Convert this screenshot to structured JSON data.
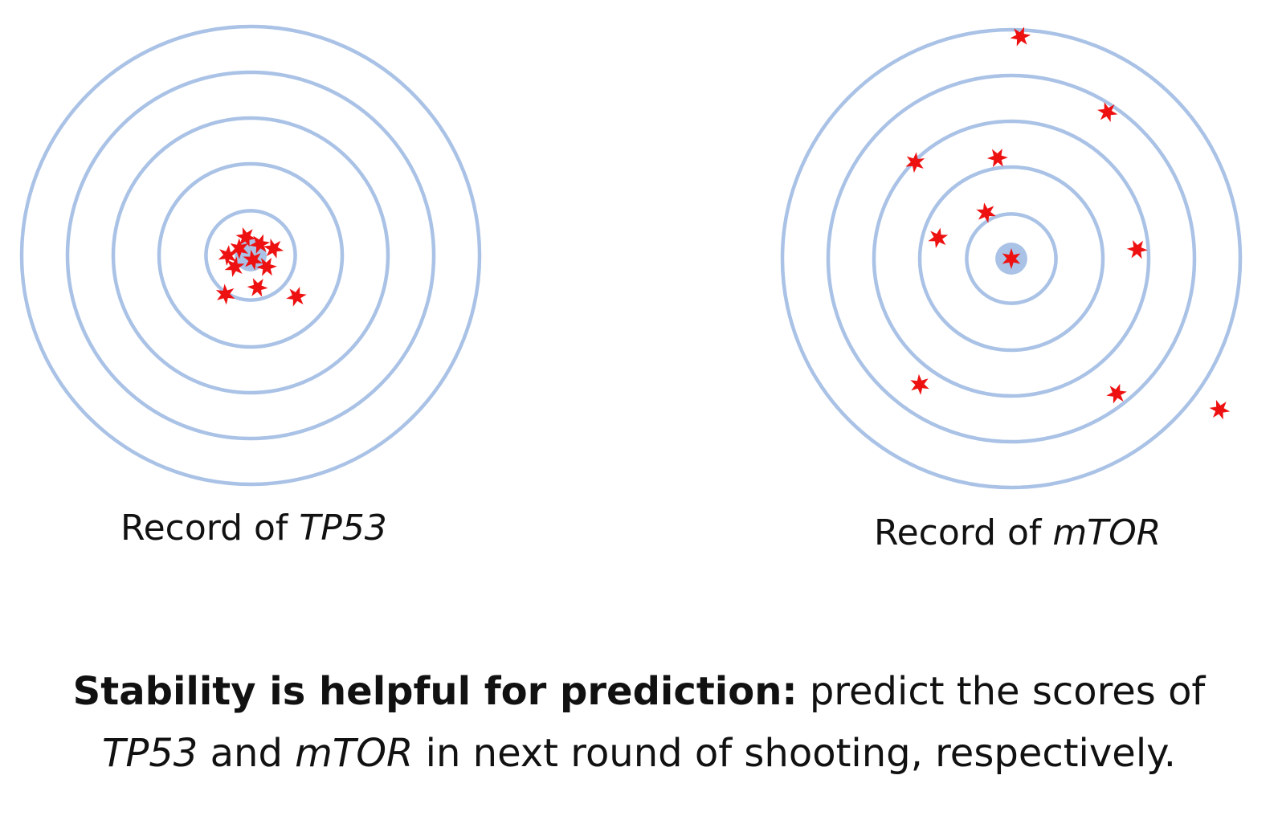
{
  "colors": {
    "ring": "#a9c2e6",
    "bullseye": "#a9c2e6",
    "shot": "#ee1111",
    "text": "#111111"
  },
  "targets": [
    {
      "id": "tp53",
      "label_prefix": "Record of ",
      "label_gene": "TP53",
      "ring_count": 5,
      "shots": [
        [
          -0.05,
          0.03
        ],
        [
          0.04,
          0.05
        ],
        [
          0.1,
          0.03
        ],
        [
          -0.1,
          0.0
        ],
        [
          0.07,
          -0.05
        ],
        [
          0.01,
          -0.02
        ],
        [
          -0.07,
          -0.05
        ],
        [
          0.03,
          -0.14
        ],
        [
          -0.11,
          -0.17
        ],
        [
          0.2,
          -0.18
        ],
        [
          -0.02,
          0.08
        ]
      ]
    },
    {
      "id": "mtor",
      "label_prefix": "Record of ",
      "label_gene": "mTOR",
      "ring_count": 5,
      "shots": [
        [
          0.0,
          0.0
        ],
        [
          0.04,
          0.97
        ],
        [
          0.42,
          0.64
        ],
        [
          -0.42,
          0.42
        ],
        [
          -0.06,
          0.44
        ],
        [
          -0.11,
          0.2
        ],
        [
          -0.32,
          0.09
        ],
        [
          0.55,
          0.04
        ],
        [
          -0.4,
          -0.55
        ],
        [
          0.46,
          -0.59
        ],
        [
          0.91,
          -0.66
        ]
      ]
    }
  ],
  "caption": {
    "bold_part": "Stability is helpful for prediction:",
    "rest_line_1": " predict the scores of",
    "gene_1": "TP53",
    "and_text": " and ",
    "gene_2": "mTOR",
    "rest_line_2": " in next round of shooting, respectively."
  }
}
